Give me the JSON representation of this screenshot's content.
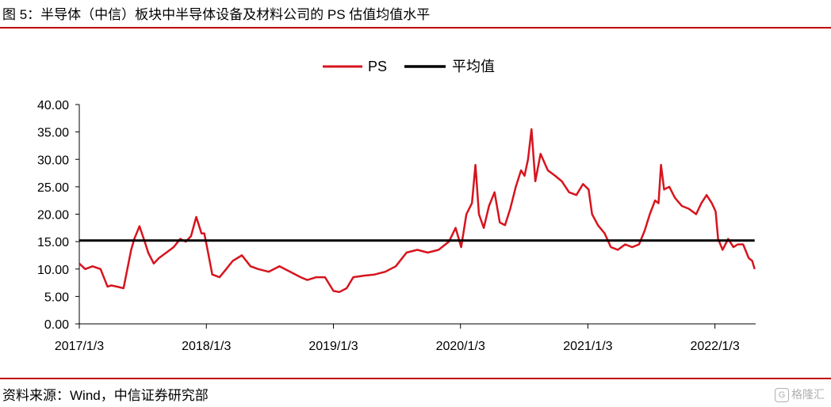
{
  "header": {
    "title": "图 5：半导体（中信）板块中半导体设备及材料公司的 PS 估值均值水平"
  },
  "footer": {
    "source": "资料来源：Wind，中信证券研究部",
    "watermark": "格隆汇",
    "watermark_icon": "G"
  },
  "colors": {
    "accent_rule": "#c00000",
    "ps_line": "#d7141e",
    "mean_line": "#000000"
  },
  "chart_data": {
    "type": "line",
    "title": "",
    "xlabel": "",
    "ylabel": "",
    "ylim": [
      0,
      40
    ],
    "yticks": [
      0,
      5,
      10,
      15,
      20,
      25,
      30,
      35,
      40
    ],
    "ytick_labels": [
      "0.00",
      "5.00",
      "10.00",
      "15.00",
      "20.00",
      "25.00",
      "30.00",
      "35.00",
      "40.00"
    ],
    "xlim": [
      "2017-01-03",
      "2022-04-30"
    ],
    "xticks": [
      "2017-01-03",
      "2018-01-03",
      "2019-01-03",
      "2020-01-03",
      "2021-01-03",
      "2022-01-03"
    ],
    "xtick_labels": [
      "2017/1/3",
      "2018/1/3",
      "2019/1/3",
      "2020/1/3",
      "2021/1/3",
      "2022/1/3"
    ],
    "legend": {
      "placement": "top-center",
      "entries": [
        "PS",
        "平均值"
      ]
    },
    "grid": false,
    "series": [
      {
        "name": "PS",
        "x": [
          "2017-01-03",
          "2017-01-20",
          "2017-02-10",
          "2017-03-05",
          "2017-03-25",
          "2017-04-05",
          "2017-04-20",
          "2017-05-10",
          "2017-06-01",
          "2017-06-10",
          "2017-06-25",
          "2017-07-10",
          "2017-07-20",
          "2017-08-05",
          "2017-08-20",
          "2017-09-10",
          "2017-10-01",
          "2017-10-20",
          "2017-11-05",
          "2017-11-20",
          "2017-12-05",
          "2017-12-20",
          "2017-12-28",
          "2018-01-05",
          "2018-01-20",
          "2018-02-10",
          "2018-03-01",
          "2018-03-20",
          "2018-04-15",
          "2018-05-10",
          "2018-06-01",
          "2018-07-01",
          "2018-08-01",
          "2018-09-01",
          "2018-10-01",
          "2018-10-20",
          "2018-11-15",
          "2018-12-10",
          "2019-01-03",
          "2019-01-20",
          "2019-02-10",
          "2019-03-01",
          "2019-04-01",
          "2019-05-01",
          "2019-06-01",
          "2019-07-01",
          "2019-08-01",
          "2019-09-01",
          "2019-10-01",
          "2019-11-01",
          "2019-12-01",
          "2019-12-20",
          "2020-01-05",
          "2020-01-20",
          "2020-02-05",
          "2020-02-15",
          "2020-02-25",
          "2020-03-10",
          "2020-03-25",
          "2020-04-10",
          "2020-04-25",
          "2020-05-10",
          "2020-05-25",
          "2020-06-10",
          "2020-06-25",
          "2020-07-05",
          "2020-07-15",
          "2020-07-25",
          "2020-08-05",
          "2020-08-20",
          "2020-09-10",
          "2020-10-01",
          "2020-10-20",
          "2020-11-10",
          "2020-12-01",
          "2020-12-20",
          "2021-01-05",
          "2021-01-15",
          "2021-02-01",
          "2021-02-20",
          "2021-03-10",
          "2021-03-30",
          "2021-04-20",
          "2021-05-10",
          "2021-05-30",
          "2021-06-15",
          "2021-06-30",
          "2021-07-15",
          "2021-07-25",
          "2021-08-01",
          "2021-08-10",
          "2021-08-25",
          "2021-09-10",
          "2021-09-30",
          "2021-10-20",
          "2021-11-10",
          "2021-11-25",
          "2021-12-10",
          "2021-12-25",
          "2022-01-05",
          "2022-01-12",
          "2022-01-25",
          "2022-02-10",
          "2022-02-25",
          "2022-03-10",
          "2022-03-25",
          "2022-04-10",
          "2022-04-20",
          "2022-04-27"
        ],
        "values": [
          11.0,
          10.0,
          10.5,
          10.0,
          6.8,
          7.0,
          6.8,
          6.5,
          13.5,
          15.5,
          17.8,
          15.0,
          13.0,
          11.0,
          12.0,
          13.0,
          14.0,
          15.5,
          15.0,
          16.0,
          19.5,
          16.5,
          16.5,
          14.0,
          9.0,
          8.5,
          10.0,
          11.5,
          12.5,
          10.5,
          10.0,
          9.5,
          10.5,
          9.5,
          8.5,
          8.0,
          8.5,
          8.5,
          6.0,
          5.8,
          6.5,
          8.5,
          8.8,
          9.0,
          9.5,
          10.5,
          13.0,
          13.5,
          13.0,
          13.5,
          15.0,
          17.5,
          14.0,
          20.0,
          22.0,
          29.0,
          20.0,
          17.5,
          21.5,
          24.0,
          18.5,
          18.0,
          21.0,
          25.0,
          28.0,
          27.0,
          30.0,
          35.5,
          26.0,
          31.0,
          28.0,
          27.0,
          26.0,
          24.0,
          23.5,
          25.5,
          24.5,
          20.0,
          18.0,
          16.5,
          14.0,
          13.5,
          14.5,
          14.0,
          14.5,
          17.0,
          20.0,
          22.5,
          22.0,
          29.0,
          24.5,
          25.0,
          23.0,
          21.5,
          21.0,
          20.0,
          22.0,
          23.5,
          22.0,
          20.5,
          15.5,
          13.5,
          15.5,
          14.0,
          14.5,
          14.5,
          12.0,
          11.5,
          10.0
        ]
      },
      {
        "name": "平均值",
        "x": [
          "2017-01-03",
          "2022-04-27"
        ],
        "values": [
          15.2,
          15.2
        ]
      }
    ]
  }
}
